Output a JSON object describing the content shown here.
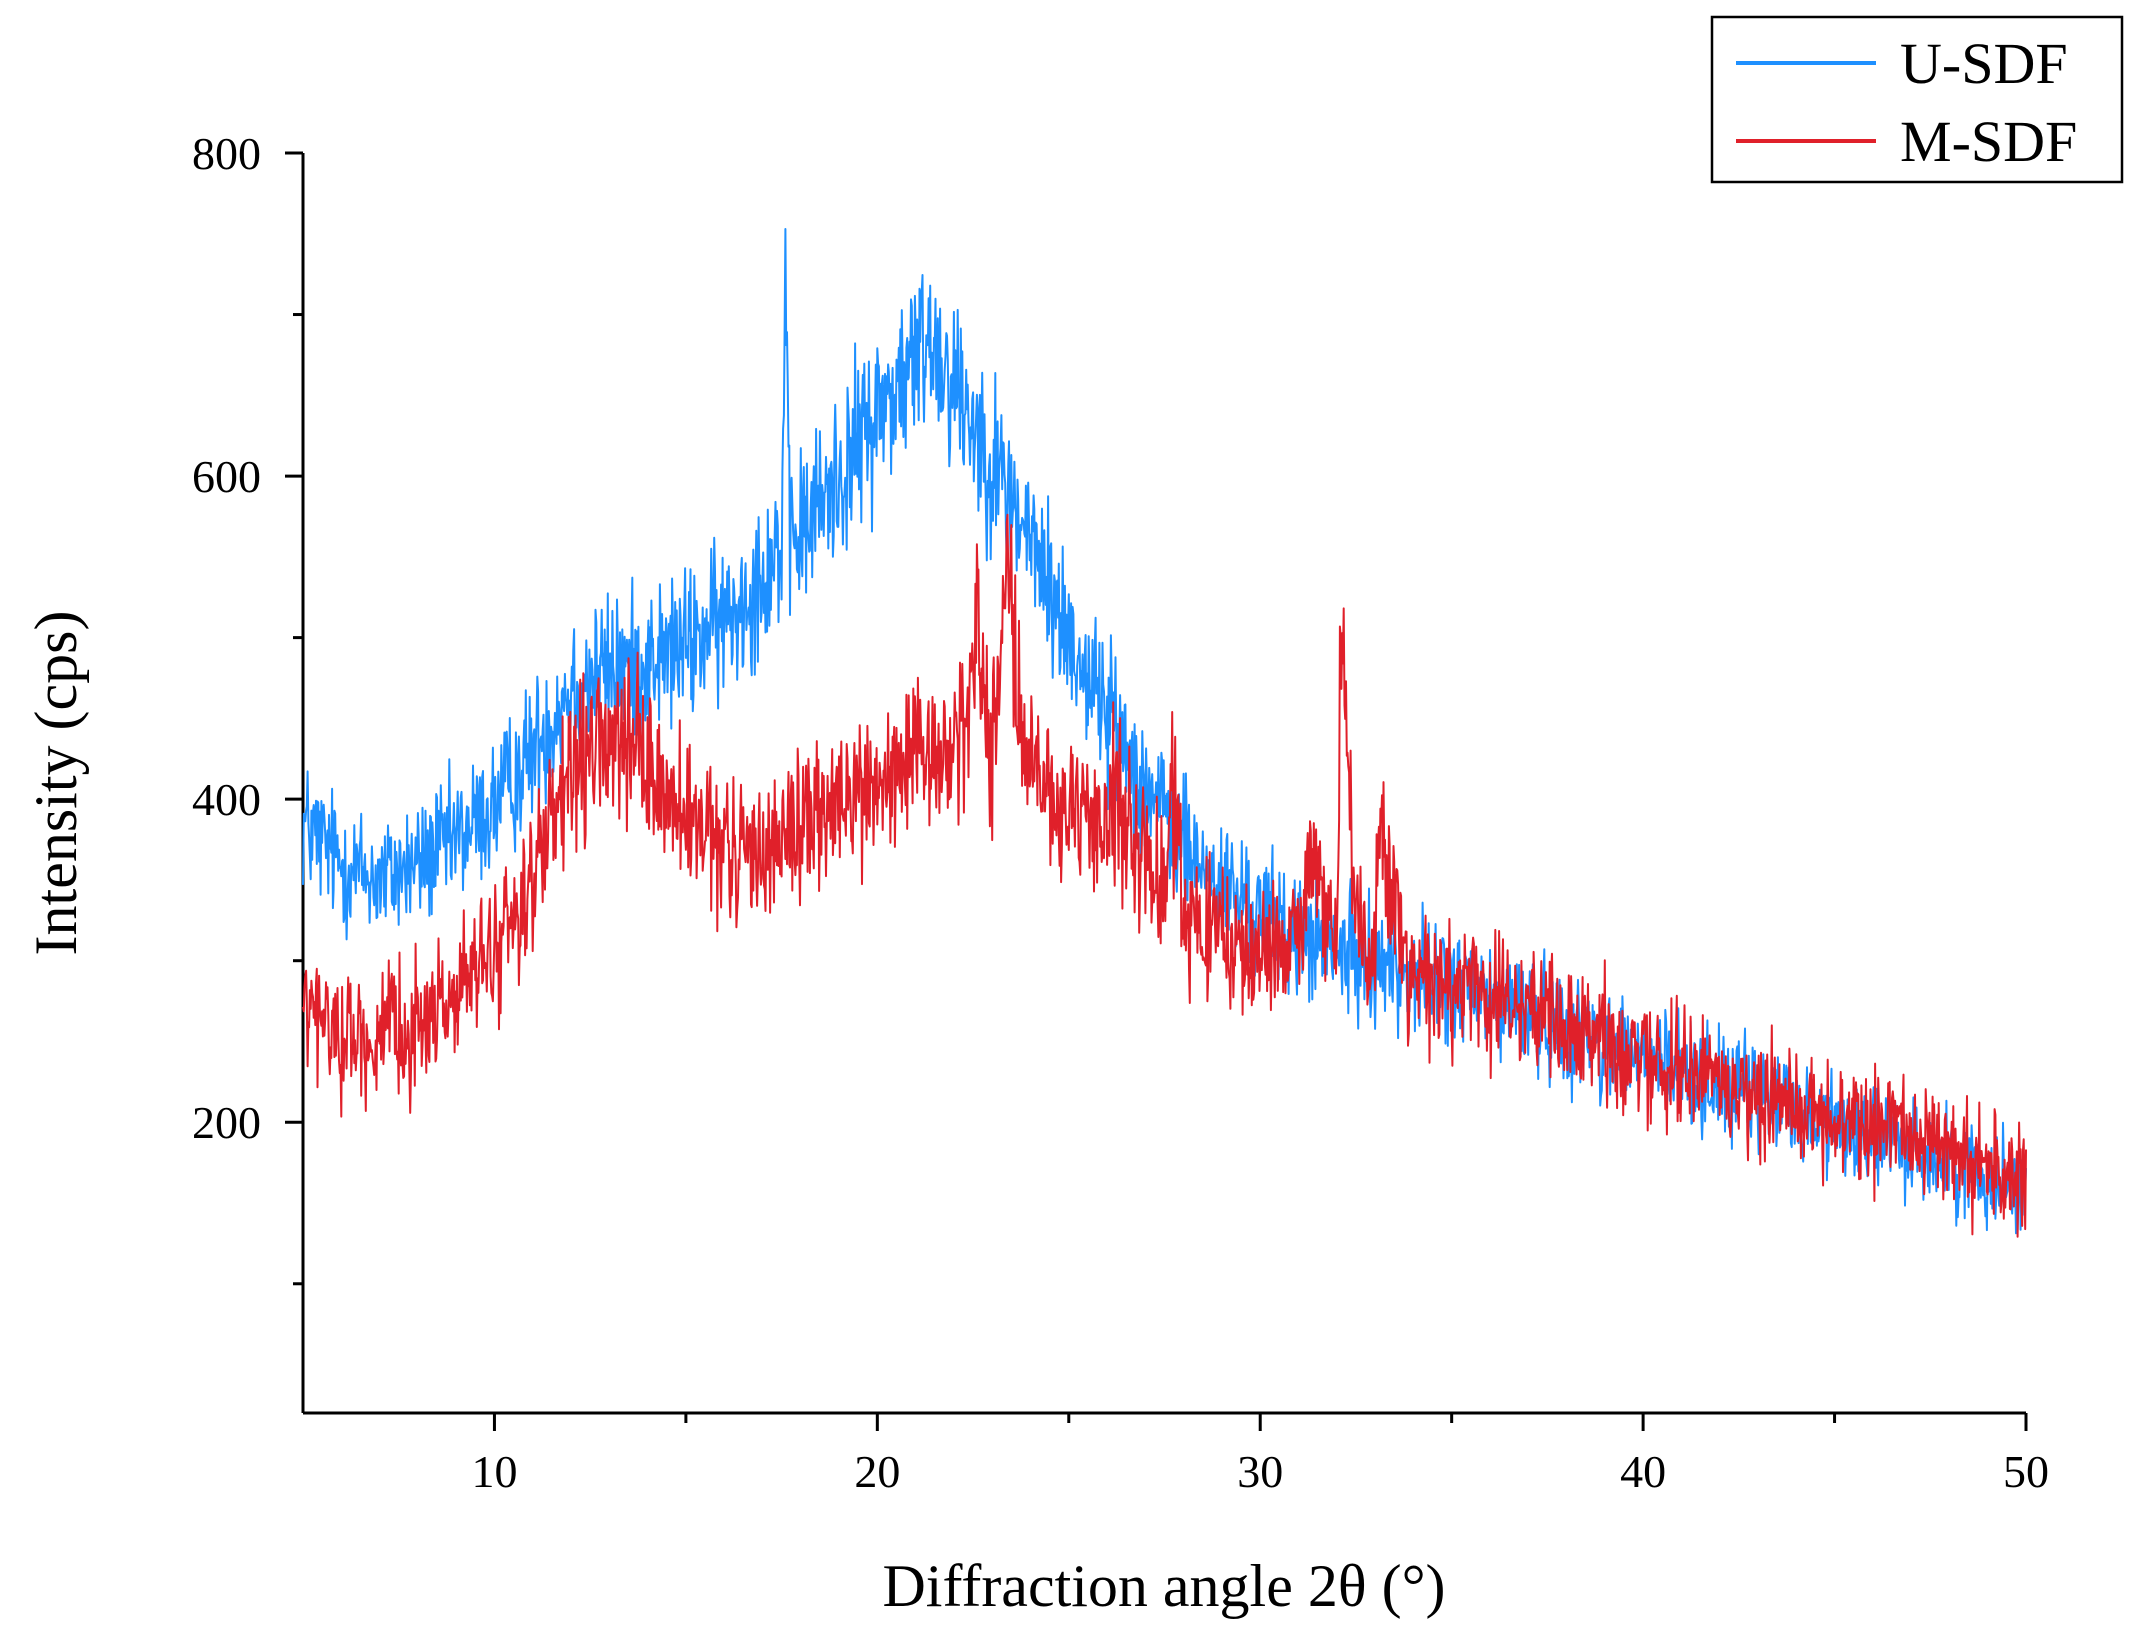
{
  "chart_data": {
    "type": "line",
    "title": "",
    "xlabel": "Diffraction angle 2θ (°)",
    "ylabel": "Intensity (cps)",
    "xlim": [
      5,
      50
    ],
    "ylim": [
      20,
      800
    ],
    "grid": false,
    "legend_position": "top-right",
    "x_ticks": [
      10,
      20,
      30,
      40,
      50
    ],
    "x_tick_labels": [
      "10",
      "20",
      "30",
      "40",
      "50"
    ],
    "x_minor_ticks": [
      15,
      25,
      35,
      45
    ],
    "y_ticks": [
      200,
      400,
      600,
      800
    ],
    "y_tick_labels": [
      "200",
      "400",
      "600",
      "800"
    ],
    "y_minor_ticks": [
      100,
      300,
      500,
      700
    ],
    "series": [
      {
        "name": "U-SDF",
        "color": "#1e90ff",
        "noise": 18,
        "x": [
          5,
          6,
          7,
          8,
          9,
          10,
          11,
          12,
          13,
          14,
          15,
          16,
          17,
          17.5,
          17.6,
          17.7,
          18,
          19,
          20,
          21,
          21.3,
          22,
          23,
          24,
          25,
          26,
          27,
          28,
          29,
          30,
          31,
          32,
          33,
          34,
          35,
          36,
          37,
          38,
          39,
          40,
          41,
          42,
          43,
          44,
          45,
          46,
          47,
          48,
          49,
          50
        ],
        "y": [
          385,
          360,
          350,
          360,
          375,
          395,
          430,
          470,
          480,
          485,
          495,
          510,
          540,
          560,
          700,
          560,
          565,
          600,
          640,
          670,
          690,
          660,
          610,
          560,
          500,
          455,
          410,
          370,
          345,
          330,
          315,
          305,
          300,
          292,
          285,
          275,
          268,
          258,
          250,
          240,
          232,
          224,
          215,
          208,
          200,
          192,
          184,
          176,
          168,
          160
        ]
      },
      {
        "name": "M-SDF",
        "color": "#e0202a",
        "noise": 20,
        "x": [
          5,
          6,
          7,
          8,
          9,
          10,
          11,
          12,
          12.8,
          13.5,
          14,
          15,
          16,
          17,
          18,
          19,
          20,
          21,
          22,
          22.4,
          22.6,
          22.8,
          23,
          23.2,
          23.4,
          23.6,
          24,
          25,
          26,
          26.2,
          27,
          27.5,
          27.7,
          28,
          29,
          30,
          31,
          31.3,
          32,
          32.1,
          32.2,
          32.5,
          33,
          33.1,
          33.5,
          34,
          35,
          35.5,
          36,
          37,
          38,
          39,
          40,
          41,
          42,
          43,
          44,
          45,
          46,
          47,
          48,
          49,
          50
        ],
        "y": [
          270,
          255,
          250,
          260,
          280,
          305,
          350,
          410,
          435,
          430,
          420,
          385,
          365,
          370,
          385,
          395,
          410,
          420,
          430,
          455,
          520,
          460,
          430,
          480,
          560,
          470,
          420,
          380,
          385,
          410,
          360,
          340,
          420,
          330,
          310,
          305,
          315,
          360,
          310,
          500,
          480,
          315,
          305,
          390,
          330,
          295,
          280,
          300,
          272,
          270,
          258,
          250,
          240,
          232,
          225,
          218,
          210,
          203,
          198,
          190,
          182,
          172,
          162
        ]
      }
    ]
  }
}
